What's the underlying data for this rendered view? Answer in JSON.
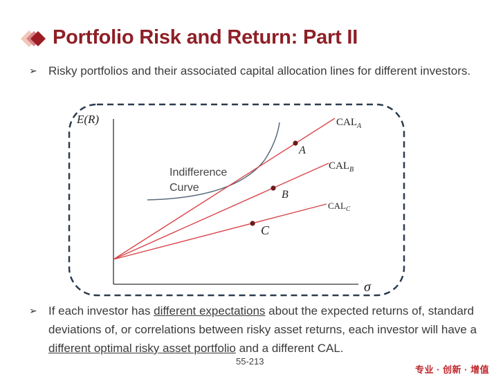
{
  "slide": {
    "title": "Portfolio Risk and Return: Part II",
    "bullet1": "Risky portfolios and their associated capital allocation lines for different investors.",
    "bullet2": {
      "p1": "If each investor has ",
      "u1": "different expectations",
      "p2": " about the expected returns of, standard deviations of, or correlations between risky asset returns, each investor will have a ",
      "u2": "different optimal risky asset portfolio",
      "p3": " and a different CAL."
    },
    "page_number": "55-213",
    "footer_brand": "专业 · 创新 · 增值"
  },
  "diagram": {
    "y_axis_label": "E(R)",
    "x_axis_label": "σ",
    "curve_label_line1": "Indifference",
    "curve_label_line2": "Curve",
    "lines": [
      {
        "name": "CAL",
        "sub": "A",
        "point": "A"
      },
      {
        "name": "CAL",
        "sub": "B",
        "point": "B"
      },
      {
        "name": "CAL",
        "sub": "C",
        "point": "C"
      }
    ],
    "colors": {
      "cal_line": "#d9474c",
      "point": "#6e1a1e",
      "curve": "#5a6a7a",
      "border": "#2b3b4f",
      "title": "#8e1f26"
    }
  }
}
